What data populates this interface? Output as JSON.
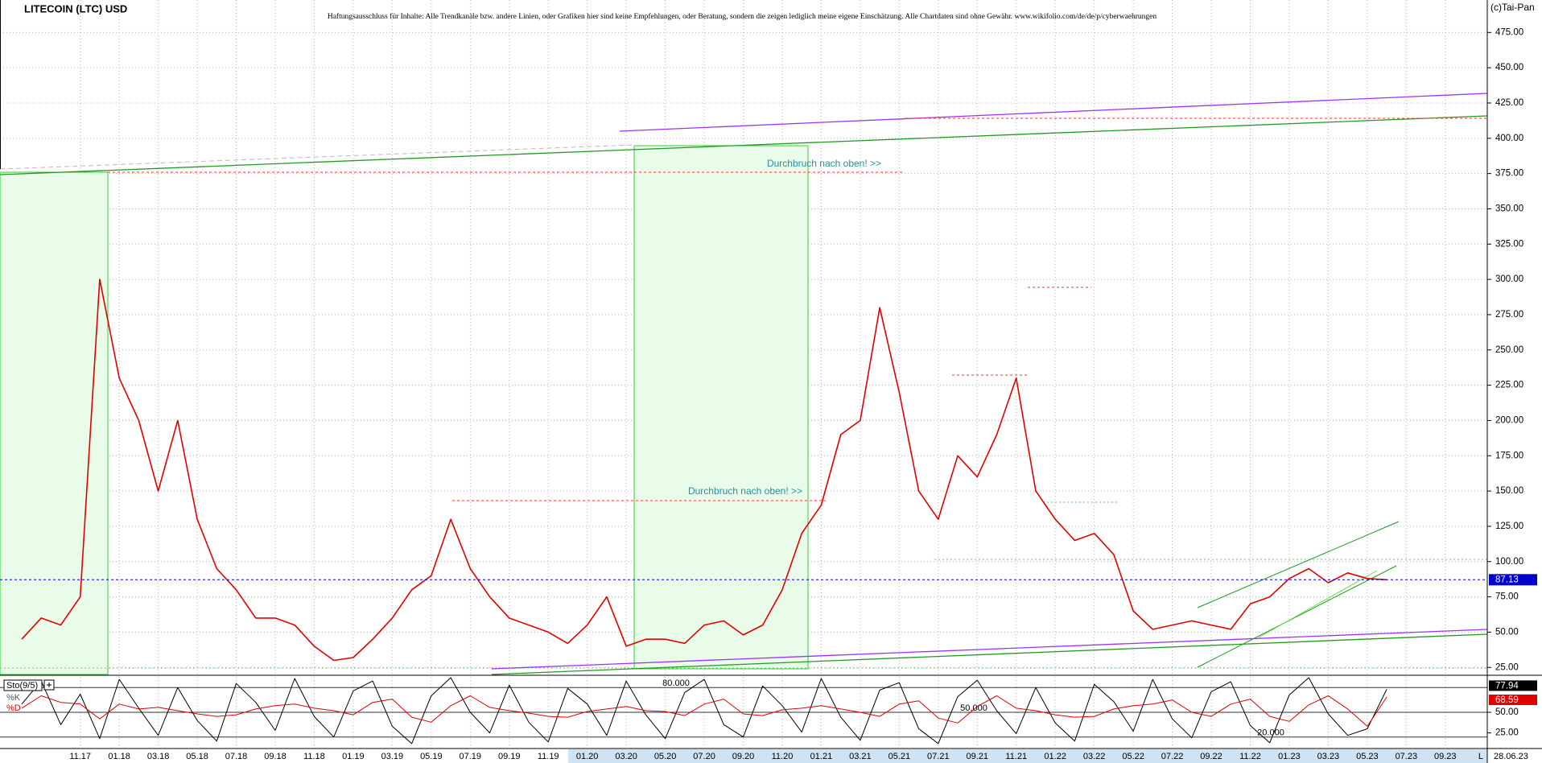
{
  "chart_data": [
    {
      "type": "line",
      "title": "LITECOIN (LTC) USD",
      "subtitle": "Haftungsausschluss für Inhalte: Alle Trendkanäle bzw. andere Linien, oder Grafiken hier sind keine Empfehlungen, oder Beratung, sondern die zeigen lediglich meine eigene Einschätzung. Alle Chartdaten sind ohne Gewähr. www.wikifolio.com/de/de/p/cyberwaehrungen",
      "copyright": "(c)Tai-Pan",
      "annotations": [
        "Durchbruch nach oben! >>",
        "Durchbruch nach oben! >>"
      ],
      "last_date": "28.06.23",
      "footer_mark": "L",
      "categories": [
        null,
        null,
        null,
        "11.17",
        null,
        "01.18",
        null,
        "03.18",
        null,
        "05.18",
        null,
        "07.18",
        null,
        "09.18",
        null,
        "11.18",
        null,
        "01.19",
        null,
        "03.19",
        null,
        "05.19",
        null,
        "07.19",
        null,
        "09.19",
        null,
        "11.19",
        null,
        "01.20",
        null,
        "03.20",
        null,
        "05.20",
        null,
        "07.20",
        null,
        "09.20",
        null,
        "11.20",
        null,
        "01.21",
        null,
        "03.21",
        null,
        "05.21",
        null,
        "07.21",
        null,
        "09.21",
        null,
        "11.21",
        null,
        "01.22",
        null,
        "03.22",
        null,
        "05.22",
        null,
        "07.22",
        null,
        "09.22",
        null,
        "11.22",
        null,
        "01.23",
        null,
        "03.23",
        null,
        "05.23",
        null,
        "07.23",
        null,
        "09.23"
      ],
      "series": [
        {
          "name": "LTC",
          "color": "#e00000",
          "values": [
            45,
            60,
            55,
            75,
            300,
            230,
            200,
            150,
            200,
            130,
            95,
            80,
            60,
            60,
            55,
            40,
            30,
            32,
            45,
            60,
            80,
            90,
            130,
            95,
            75,
            60,
            55,
            50,
            42,
            55,
            75,
            40,
            45,
            45,
            42,
            55,
            58,
            48,
            55,
            80,
            120,
            140,
            190,
            200,
            280,
            220,
            150,
            130,
            175,
            160,
            190,
            230,
            150,
            130,
            115,
            120,
            105,
            65,
            52,
            55,
            58,
            55,
            52,
            70,
            75,
            88,
            95,
            85,
            92,
            88,
            87.13,
            null,
            null,
            null
          ]
        }
      ],
      "last_price_color": "#0000cc",
      "ylim": [
        20,
        498
      ],
      "yticks": [
        {
          "value": 25,
          "label": "25.00"
        },
        {
          "value": 50,
          "label": "50.00"
        },
        {
          "value": 75,
          "label": "75.00"
        },
        {
          "value": 100,
          "label": "100.00"
        },
        {
          "value": 125,
          "label": "125.00"
        },
        {
          "value": 150,
          "label": "150.00"
        },
        {
          "value": 175,
          "label": "175.00"
        },
        {
          "value": 200,
          "label": "200.00"
        },
        {
          "value": 225,
          "label": "225.00"
        },
        {
          "value": 250,
          "label": "250.00"
        },
        {
          "value": 275,
          "label": "275.00"
        },
        {
          "value": 300,
          "label": "300.00"
        },
        {
          "value": 325,
          "label": "325.00"
        },
        {
          "value": 350,
          "label": "350.00"
        },
        {
          "value": 375,
          "label": "375.00"
        },
        {
          "value": 400,
          "label": "400.00"
        },
        {
          "value": 425,
          "label": "425.00"
        },
        {
          "value": 450,
          "label": "450.00"
        },
        {
          "value": 475,
          "label": "475.00"
        }
      ],
      "grid": true
    },
    {
      "type": "line",
      "title": "Sto(9/5)",
      "series": [
        {
          "name": "%K",
          "color": "#000000",
          "values": [
            60,
            88,
            35,
            72,
            18,
            90,
            55,
            22,
            80,
            40,
            15,
            85,
            62,
            28,
            91,
            45,
            20,
            76,
            88,
            33,
            12,
            70,
            92,
            50,
            25,
            83,
            38,
            14,
            79,
            60,
            22,
            88,
            47,
            18,
            74,
            90,
            35,
            20,
            82,
            58,
            26,
            91,
            44,
            16,
            77,
            86,
            30,
            12,
            69,
            89,
            52,
            24,
            80,
            37,
            15,
            84,
            63,
            27,
            90,
            42,
            19,
            75,
            87,
            34,
            13,
            71,
            92,
            48,
            22,
            30,
            77.94,
            null,
            null,
            null
          ]
        },
        {
          "name": "%D",
          "color": "#e00000",
          "values": [
            55,
            70,
            62,
            60,
            42,
            60,
            54,
            56,
            52,
            48,
            45,
            47,
            54,
            58,
            60,
            55,
            52,
            47,
            62,
            66,
            44,
            38,
            58,
            70,
            56,
            52,
            49,
            45,
            44,
            51,
            54,
            57,
            52,
            51,
            46,
            60,
            66,
            48,
            46,
            53,
            55,
            58,
            54,
            50,
            45,
            60,
            64,
            43,
            37,
            57,
            70,
            55,
            52,
            47,
            44,
            45,
            54,
            58,
            60,
            65,
            50,
            45,
            60,
            66,
            45,
            39,
            59,
            70,
            54,
            33,
            68.59,
            null,
            null,
            null
          ]
        }
      ],
      "levels": [
        {
          "value": 80,
          "label": "80.000"
        },
        {
          "value": 50,
          "label": "50.000"
        },
        {
          "value": 20,
          "label": "20.000"
        }
      ],
      "ylim": [
        7,
        93
      ],
      "yticks": [
        {
          "value": 25,
          "label": "25.00"
        },
        {
          "value": 50,
          "label": "50.00"
        }
      ]
    }
  ]
}
